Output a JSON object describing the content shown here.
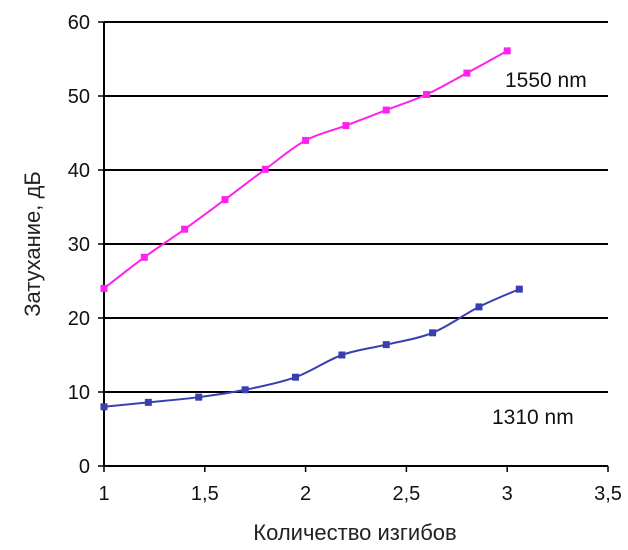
{
  "chart_data": {
    "type": "line",
    "title": "",
    "xlabel": "Количество изгибов",
    "ylabel": "Затухание, дБ",
    "xlim": [
      1,
      3.5
    ],
    "ylim": [
      0,
      60
    ],
    "x_ticks": [
      1,
      1.5,
      2,
      2.5,
      3,
      3.5
    ],
    "x_tick_labels": [
      "1",
      "1,5",
      "2",
      "2,5",
      "3",
      "3,5"
    ],
    "y_ticks": [
      0,
      10,
      20,
      30,
      40,
      50,
      60
    ],
    "y_tick_labels": [
      "0",
      "10",
      "20",
      "30",
      "40",
      "50",
      "60"
    ],
    "grid": "horizontal",
    "series": [
      {
        "name": "1550 nm",
        "color": "#ff22ee",
        "marker": "square",
        "x": [
          1.0,
          1.2,
          1.4,
          1.6,
          1.8,
          2.0,
          2.2,
          2.4,
          2.6,
          2.8,
          3.0
        ],
        "y": [
          24.0,
          28.2,
          32.0,
          36.0,
          40.1,
          44.0,
          46.0,
          48.1,
          50.2,
          53.1,
          56.1
        ]
      },
      {
        "name": "1310 nm",
        "color": "#3a3fb0",
        "marker": "square",
        "x": [
          1.0,
          1.22,
          1.47,
          1.7,
          1.95,
          2.18,
          2.4,
          2.63,
          2.86,
          3.06
        ],
        "y": [
          8.0,
          8.6,
          9.3,
          10.3,
          12.0,
          15.0,
          16.4,
          18.0,
          21.5,
          23.9
        ]
      }
    ]
  }
}
